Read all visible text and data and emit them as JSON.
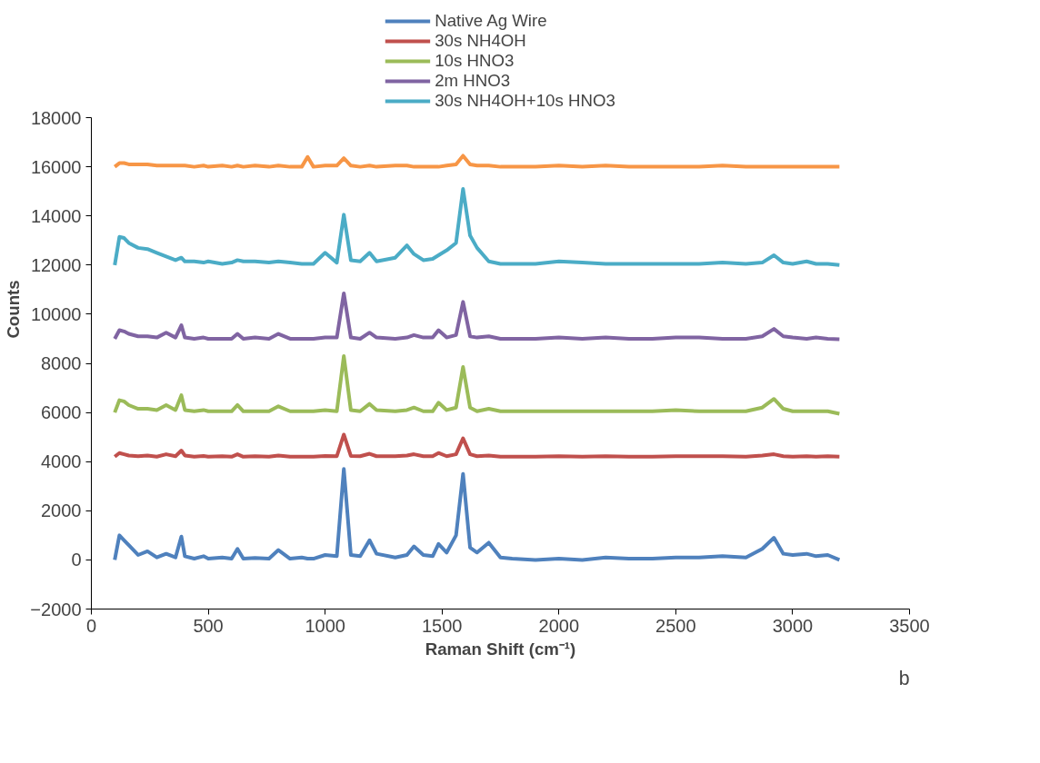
{
  "chart_data": {
    "type": "line",
    "xlabel": "Raman Shift (cm⁻¹)",
    "ylabel": "Counts",
    "x": [
      100,
      120,
      140,
      160,
      200,
      240,
      280,
      320,
      360,
      385,
      400,
      440,
      480,
      500,
      560,
      600,
      625,
      650,
      700,
      760,
      800,
      850,
      900,
      925,
      950,
      1000,
      1050,
      1080,
      1110,
      1150,
      1190,
      1220,
      1300,
      1350,
      1380,
      1420,
      1460,
      1485,
      1520,
      1560,
      1590,
      1620,
      1650,
      1700,
      1750,
      1800,
      1900,
      2000,
      2100,
      2200,
      2300,
      2400,
      2500,
      2600,
      2700,
      2800,
      2870,
      2920,
      2960,
      3000,
      3060,
      3100,
      3150,
      3200
    ],
    "series": [
      {
        "name": "Native Ag Wire",
        "color": "#4f81bd",
        "values": [
          0,
          1000,
          800,
          600,
          200,
          350,
          100,
          250,
          100,
          950,
          150,
          50,
          150,
          50,
          100,
          50,
          450,
          50,
          80,
          50,
          400,
          50,
          100,
          50,
          50,
          200,
          150,
          3700,
          200,
          150,
          800,
          250,
          100,
          200,
          550,
          200,
          150,
          650,
          300,
          1000,
          3500,
          500,
          300,
          700,
          100,
          50,
          0,
          50,
          0,
          100,
          50,
          50,
          100,
          100,
          150,
          100,
          450,
          900,
          250,
          200,
          250,
          150,
          200,
          0
        ]
      },
      {
        "name": "30s NH4OH",
        "color": "#c0504d",
        "values": [
          4200,
          4350,
          4300,
          4250,
          4220,
          4250,
          4200,
          4300,
          4220,
          4450,
          4250,
          4200,
          4230,
          4200,
          4220,
          4200,
          4300,
          4200,
          4220,
          4200,
          4250,
          4200,
          4200,
          4200,
          4200,
          4230,
          4220,
          5100,
          4230,
          4220,
          4320,
          4220,
          4220,
          4250,
          4300,
          4220,
          4220,
          4350,
          4220,
          4300,
          4950,
          4300,
          4220,
          4250,
          4200,
          4200,
          4200,
          4220,
          4200,
          4220,
          4200,
          4200,
          4220,
          4220,
          4220,
          4200,
          4250,
          4300,
          4220,
          4200,
          4220,
          4200,
          4220,
          4200
        ]
      },
      {
        "name": "10s HNO3",
        "color": "#9bbb59",
        "values": [
          6000,
          6500,
          6450,
          6300,
          6150,
          6150,
          6100,
          6300,
          6100,
          6700,
          6100,
          6050,
          6100,
          6050,
          6050,
          6050,
          6300,
          6050,
          6050,
          6050,
          6250,
          6050,
          6050,
          6050,
          6050,
          6100,
          6050,
          8300,
          6100,
          6050,
          6350,
          6100,
          6050,
          6100,
          6200,
          6050,
          6050,
          6400,
          6100,
          6200,
          7850,
          6200,
          6050,
          6150,
          6050,
          6050,
          6050,
          6050,
          6050,
          6050,
          6050,
          6050,
          6100,
          6050,
          6050,
          6050,
          6200,
          6550,
          6150,
          6050,
          6050,
          6050,
          6050,
          5950
        ]
      },
      {
        "name": "2m HNO3",
        "color": "#8064a2",
        "values": [
          9000,
          9350,
          9300,
          9200,
          9100,
          9100,
          9050,
          9250,
          9050,
          9550,
          9050,
          9000,
          9050,
          9000,
          9000,
          9000,
          9200,
          9000,
          9050,
          9000,
          9200,
          9000,
          9000,
          9000,
          9000,
          9050,
          9050,
          10850,
          9050,
          9000,
          9250,
          9050,
          9000,
          9050,
          9150,
          9050,
          9050,
          9350,
          9050,
          9150,
          10500,
          9100,
          9050,
          9100,
          9000,
          9000,
          9000,
          9050,
          9000,
          9050,
          9000,
          9000,
          9050,
          9050,
          9000,
          9000,
          9100,
          9400,
          9100,
          9050,
          9000,
          9050,
          9000,
          8980
        ]
      },
      {
        "name": "30s NH4OH+10s HNO3",
        "color": "#4bacc6",
        "values": [
          12000,
          13150,
          13100,
          12900,
          12700,
          12650,
          12500,
          12350,
          12200,
          12300,
          12150,
          12150,
          12100,
          12150,
          12050,
          12100,
          12200,
          12150,
          12150,
          12100,
          12150,
          12100,
          12050,
          12050,
          12050,
          12500,
          12100,
          14050,
          12200,
          12150,
          12500,
          12150,
          12300,
          12800,
          12450,
          12200,
          12250,
          12400,
          12600,
          12900,
          15100,
          13200,
          12700,
          12150,
          12050,
          12050,
          12050,
          12150,
          12100,
          12050,
          12050,
          12050,
          12050,
          12050,
          12100,
          12050,
          12100,
          12400,
          12100,
          12050,
          12150,
          12050,
          12050,
          12000
        ]
      },
      {
        "color": "#f79646",
        "values": [
          16000,
          16150,
          16150,
          16100,
          16100,
          16100,
          16050,
          16050,
          16050,
          16050,
          16050,
          16000,
          16050,
          16000,
          16050,
          16000,
          16050,
          16000,
          16050,
          16000,
          16050,
          16000,
          16000,
          16400,
          16000,
          16050,
          16050,
          16350,
          16050,
          16000,
          16050,
          16000,
          16050,
          16050,
          16000,
          16000,
          16000,
          16000,
          16050,
          16100,
          16450,
          16100,
          16050,
          16050,
          16000,
          16000,
          16000,
          16050,
          16000,
          16050,
          16000,
          16000,
          16000,
          16000,
          16050,
          16000,
          16000,
          16000,
          16000,
          16000,
          16000,
          16000,
          16000,
          16000
        ]
      }
    ],
    "xlim": [
      0,
      3500
    ],
    "xticks": [
      0,
      500,
      1000,
      1500,
      2000,
      2500,
      3000,
      3500
    ],
    "ylim": [
      -2000,
      18000
    ],
    "yticks": [
      -2000,
      0,
      2000,
      4000,
      6000,
      8000,
      10000,
      12000,
      14000,
      16000,
      18000
    ],
    "grid": false,
    "legend": "top",
    "marker": "none",
    "line_style": "solid",
    "annotations": [
      "b"
    ]
  }
}
